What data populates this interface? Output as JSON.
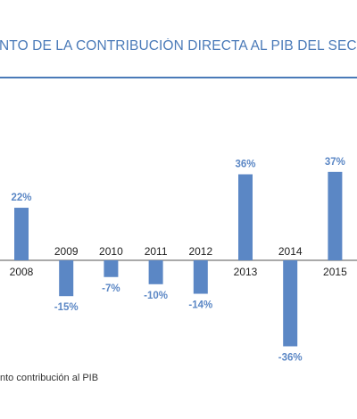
{
  "chart_data": {
    "type": "bar",
    "title": "NTO DE LA CONTRIBUCIÓN DIRECTA AL PIB DEL SECTO",
    "categories": [
      "2008",
      "2009",
      "2010",
      "2011",
      "2012",
      "2013",
      "2014",
      "2015"
    ],
    "series": [
      {
        "name": "nto contribución al PIB",
        "values": [
          22,
          -15,
          -7,
          -10,
          -14,
          36,
          -36,
          37
        ],
        "labels": [
          "22%",
          "-15%",
          "-7%",
          "-10%",
          "-14%",
          "36%",
          "-36%",
          "37%"
        ]
      }
    ],
    "xlabel": "",
    "ylabel": "",
    "ylim": [
      -40,
      40
    ],
    "grid": false,
    "legend_position": "bottom-left",
    "bar_color": "#5b87c5",
    "title_color": "#4a7ab8"
  }
}
